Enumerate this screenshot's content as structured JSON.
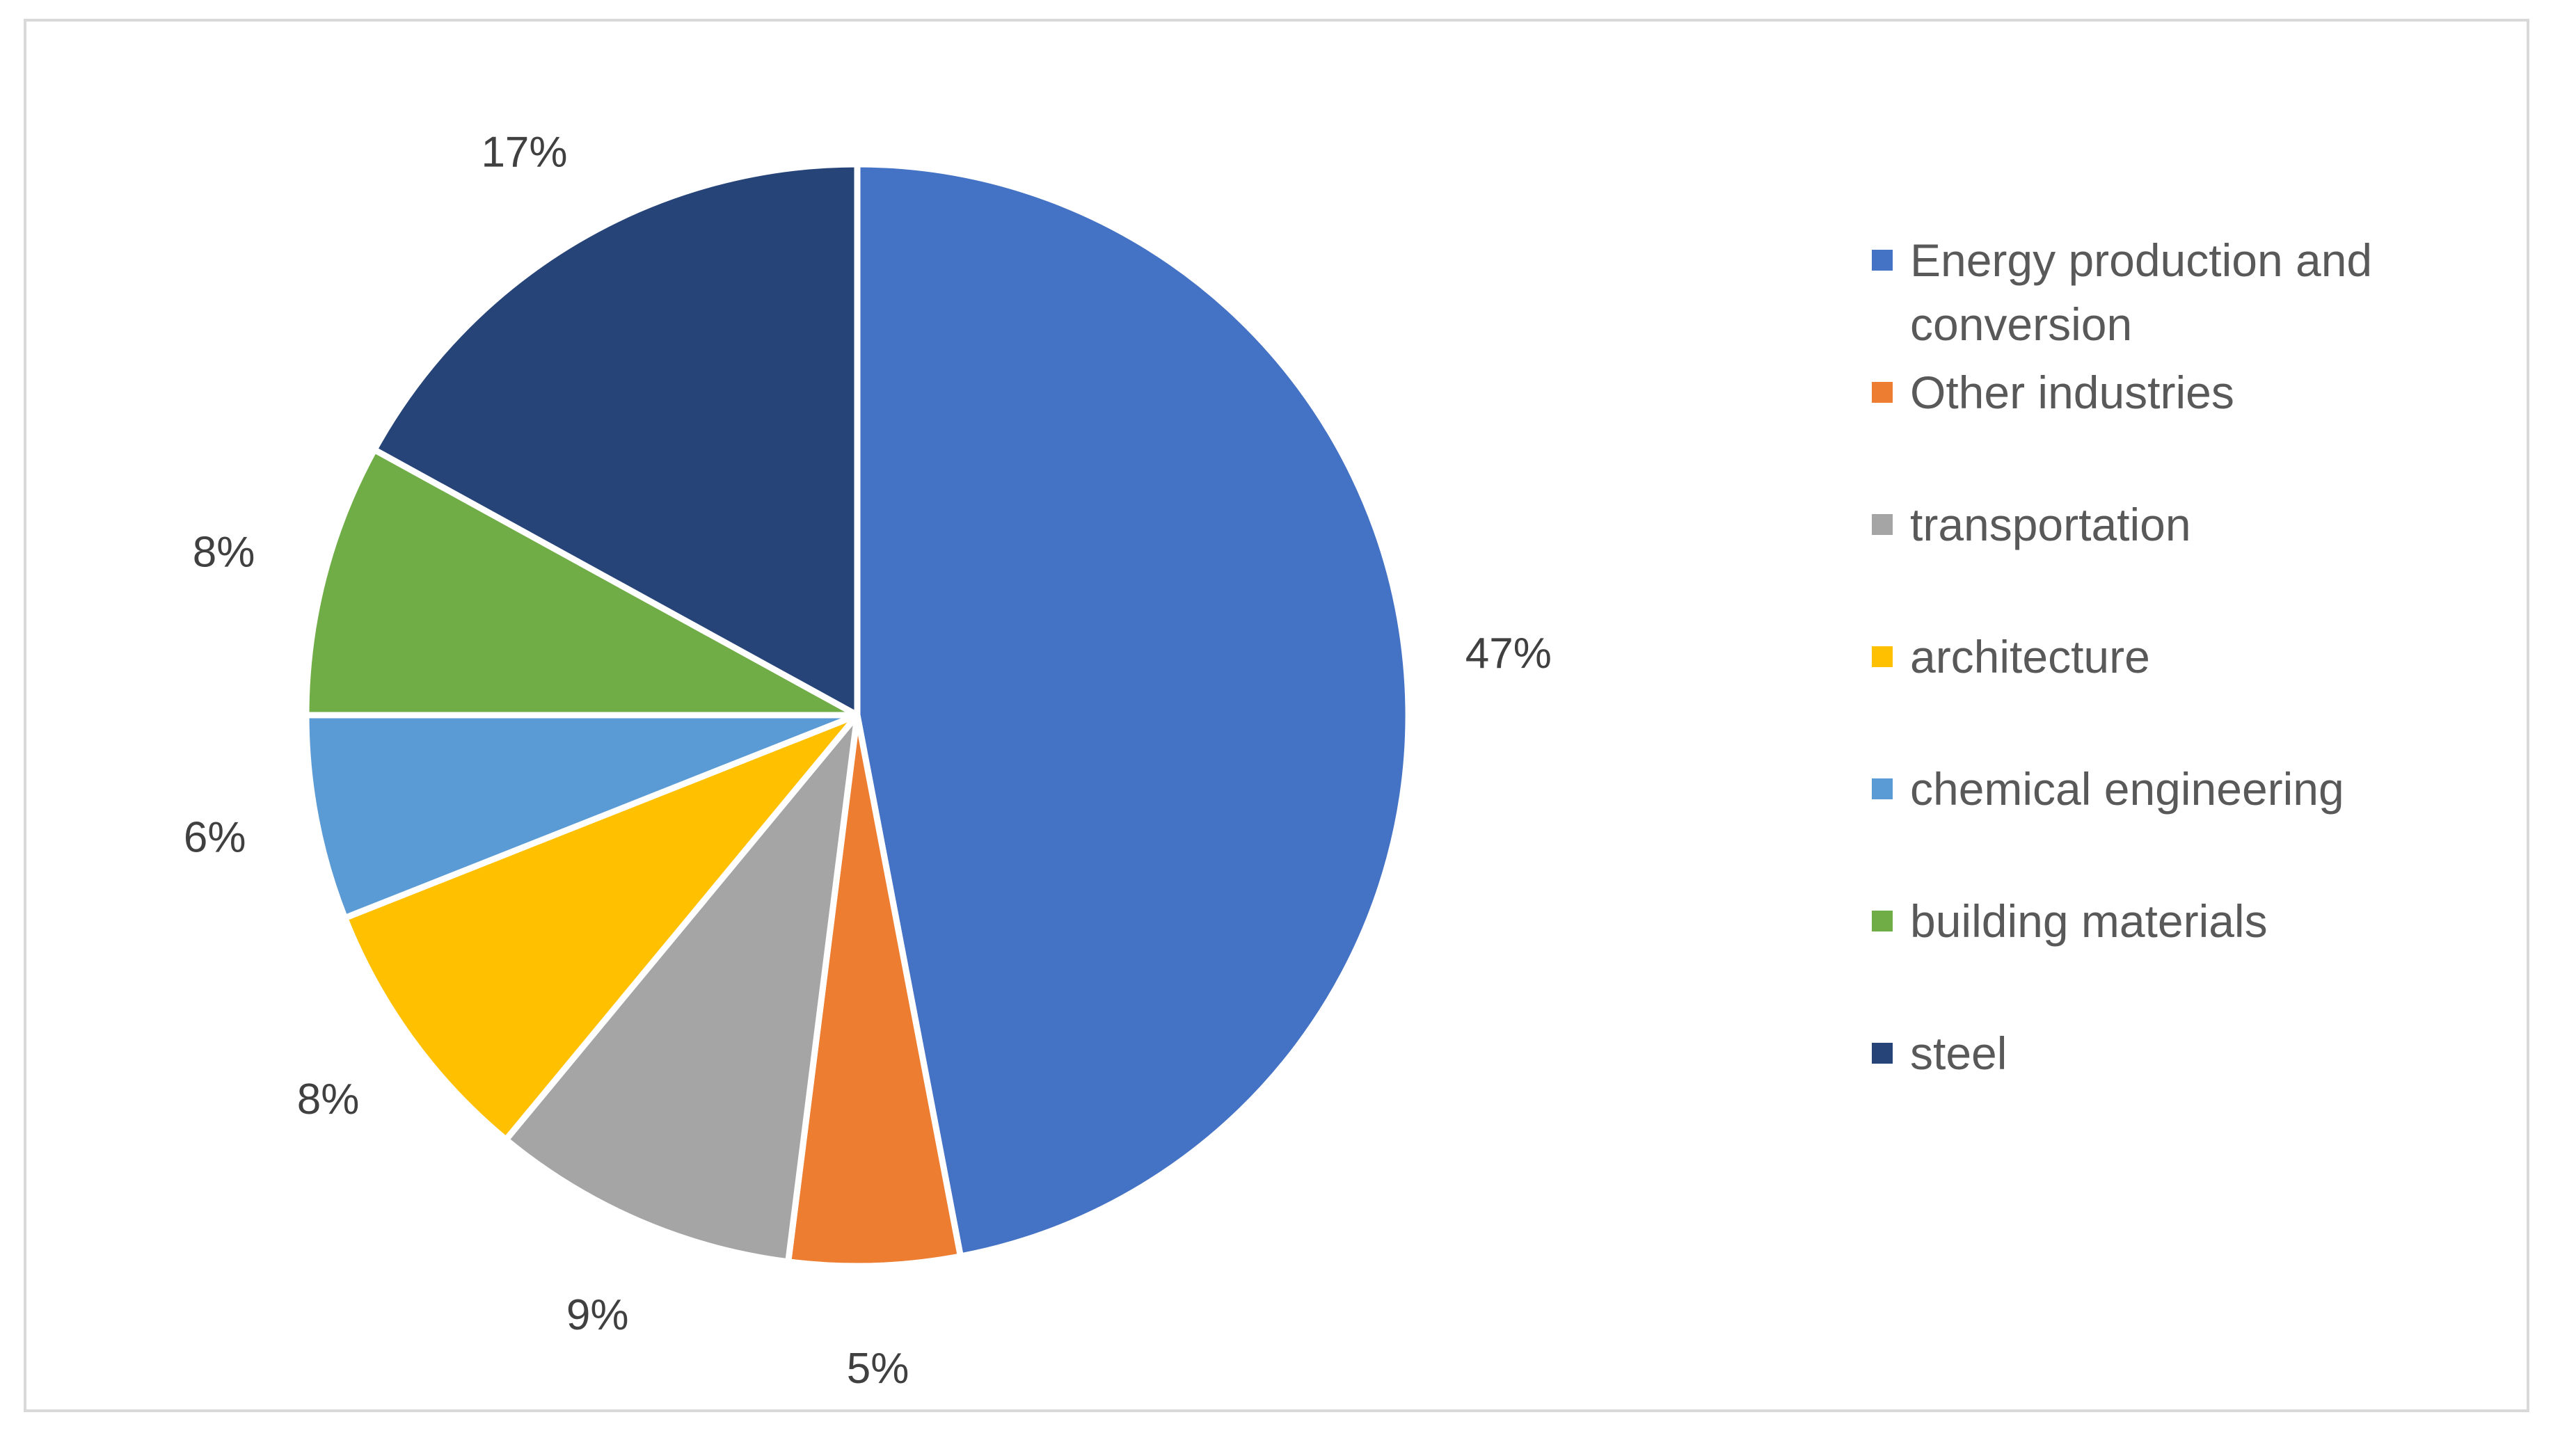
{
  "chart_data": {
    "type": "pie",
    "title": "",
    "start_angle_deg": 0,
    "direction": "clockwise",
    "legend_position": "right",
    "slices": [
      {
        "label": "Energy production and conversion",
        "legend_lines": [
          "Energy production and",
          "conversion"
        ],
        "value": 47,
        "display": "47%",
        "color": "#4472c4"
      },
      {
        "label": "Other industries",
        "legend_lines": [
          "Other industries"
        ],
        "value": 5,
        "display": "5%",
        "color": "#ed7d31"
      },
      {
        "label": "transportation",
        "legend_lines": [
          "transportation"
        ],
        "value": 9,
        "display": "9%",
        "color": "#a5a5a5"
      },
      {
        "label": "architecture",
        "legend_lines": [
          "architecture"
        ],
        "value": 8,
        "display": "8%",
        "color": "#ffc000"
      },
      {
        "label": "chemical engineering",
        "legend_lines": [
          "chemical engineering"
        ],
        "value": 6,
        "display": "6%",
        "color": "#5b9bd5"
      },
      {
        "label": "building materials",
        "legend_lines": [
          "building materials"
        ],
        "value": 8,
        "display": "8%",
        "color": "#70ad47"
      },
      {
        "label": "steel",
        "legend_lines": [
          "steel"
        ],
        "value": 17,
        "display": "17%",
        "color": "#264478"
      }
    ]
  }
}
